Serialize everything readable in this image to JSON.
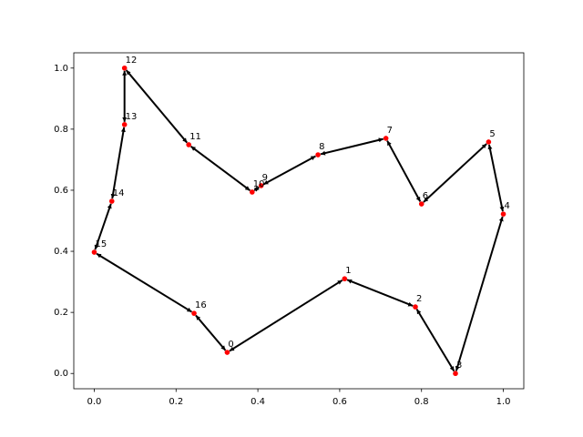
{
  "chart_data": {
    "type": "scatter",
    "x": [
      0.325,
      0.612,
      0.785,
      0.883,
      1.0,
      0.964,
      0.8,
      0.713,
      0.547,
      0.408,
      0.386,
      0.231,
      0.074,
      0.074,
      0.043,
      0.0,
      0.244
    ],
    "y": [
      0.069,
      0.31,
      0.218,
      0.0,
      0.522,
      0.758,
      0.555,
      0.77,
      0.716,
      0.615,
      0.594,
      0.749,
      1.0,
      0.815,
      0.564,
      0.397,
      0.197
    ],
    "point_labels": [
      "0",
      "1",
      "2",
      "3",
      "4",
      "5",
      "6",
      "7",
      "8",
      "9",
      "10",
      "11",
      "12",
      "13",
      "14",
      "15",
      "16"
    ],
    "color": "#ff0000",
    "arrow_color": "#000000",
    "xlim": [
      -0.05,
      1.05
    ],
    "ylim": [
      -0.05,
      1.05
    ],
    "xticks": [
      {
        "value": 0,
        "label": "0.0"
      },
      {
        "value": 0.2,
        "label": "0.2"
      },
      {
        "value": 0.4,
        "label": "0.4"
      },
      {
        "value": 0.6,
        "label": "0.6"
      },
      {
        "value": 0.8,
        "label": "0.8"
      },
      {
        "value": 1,
        "label": "1.0"
      }
    ],
    "yticks": [
      {
        "value": 0,
        "label": "0.0"
      },
      {
        "value": 0.2,
        "label": "0.2"
      },
      {
        "value": 0.4,
        "label": "0.4"
      },
      {
        "value": 0.6,
        "label": "0.6"
      },
      {
        "value": 0.8,
        "label": "0.8"
      },
      {
        "value": 1,
        "label": "1.0"
      }
    ]
  }
}
